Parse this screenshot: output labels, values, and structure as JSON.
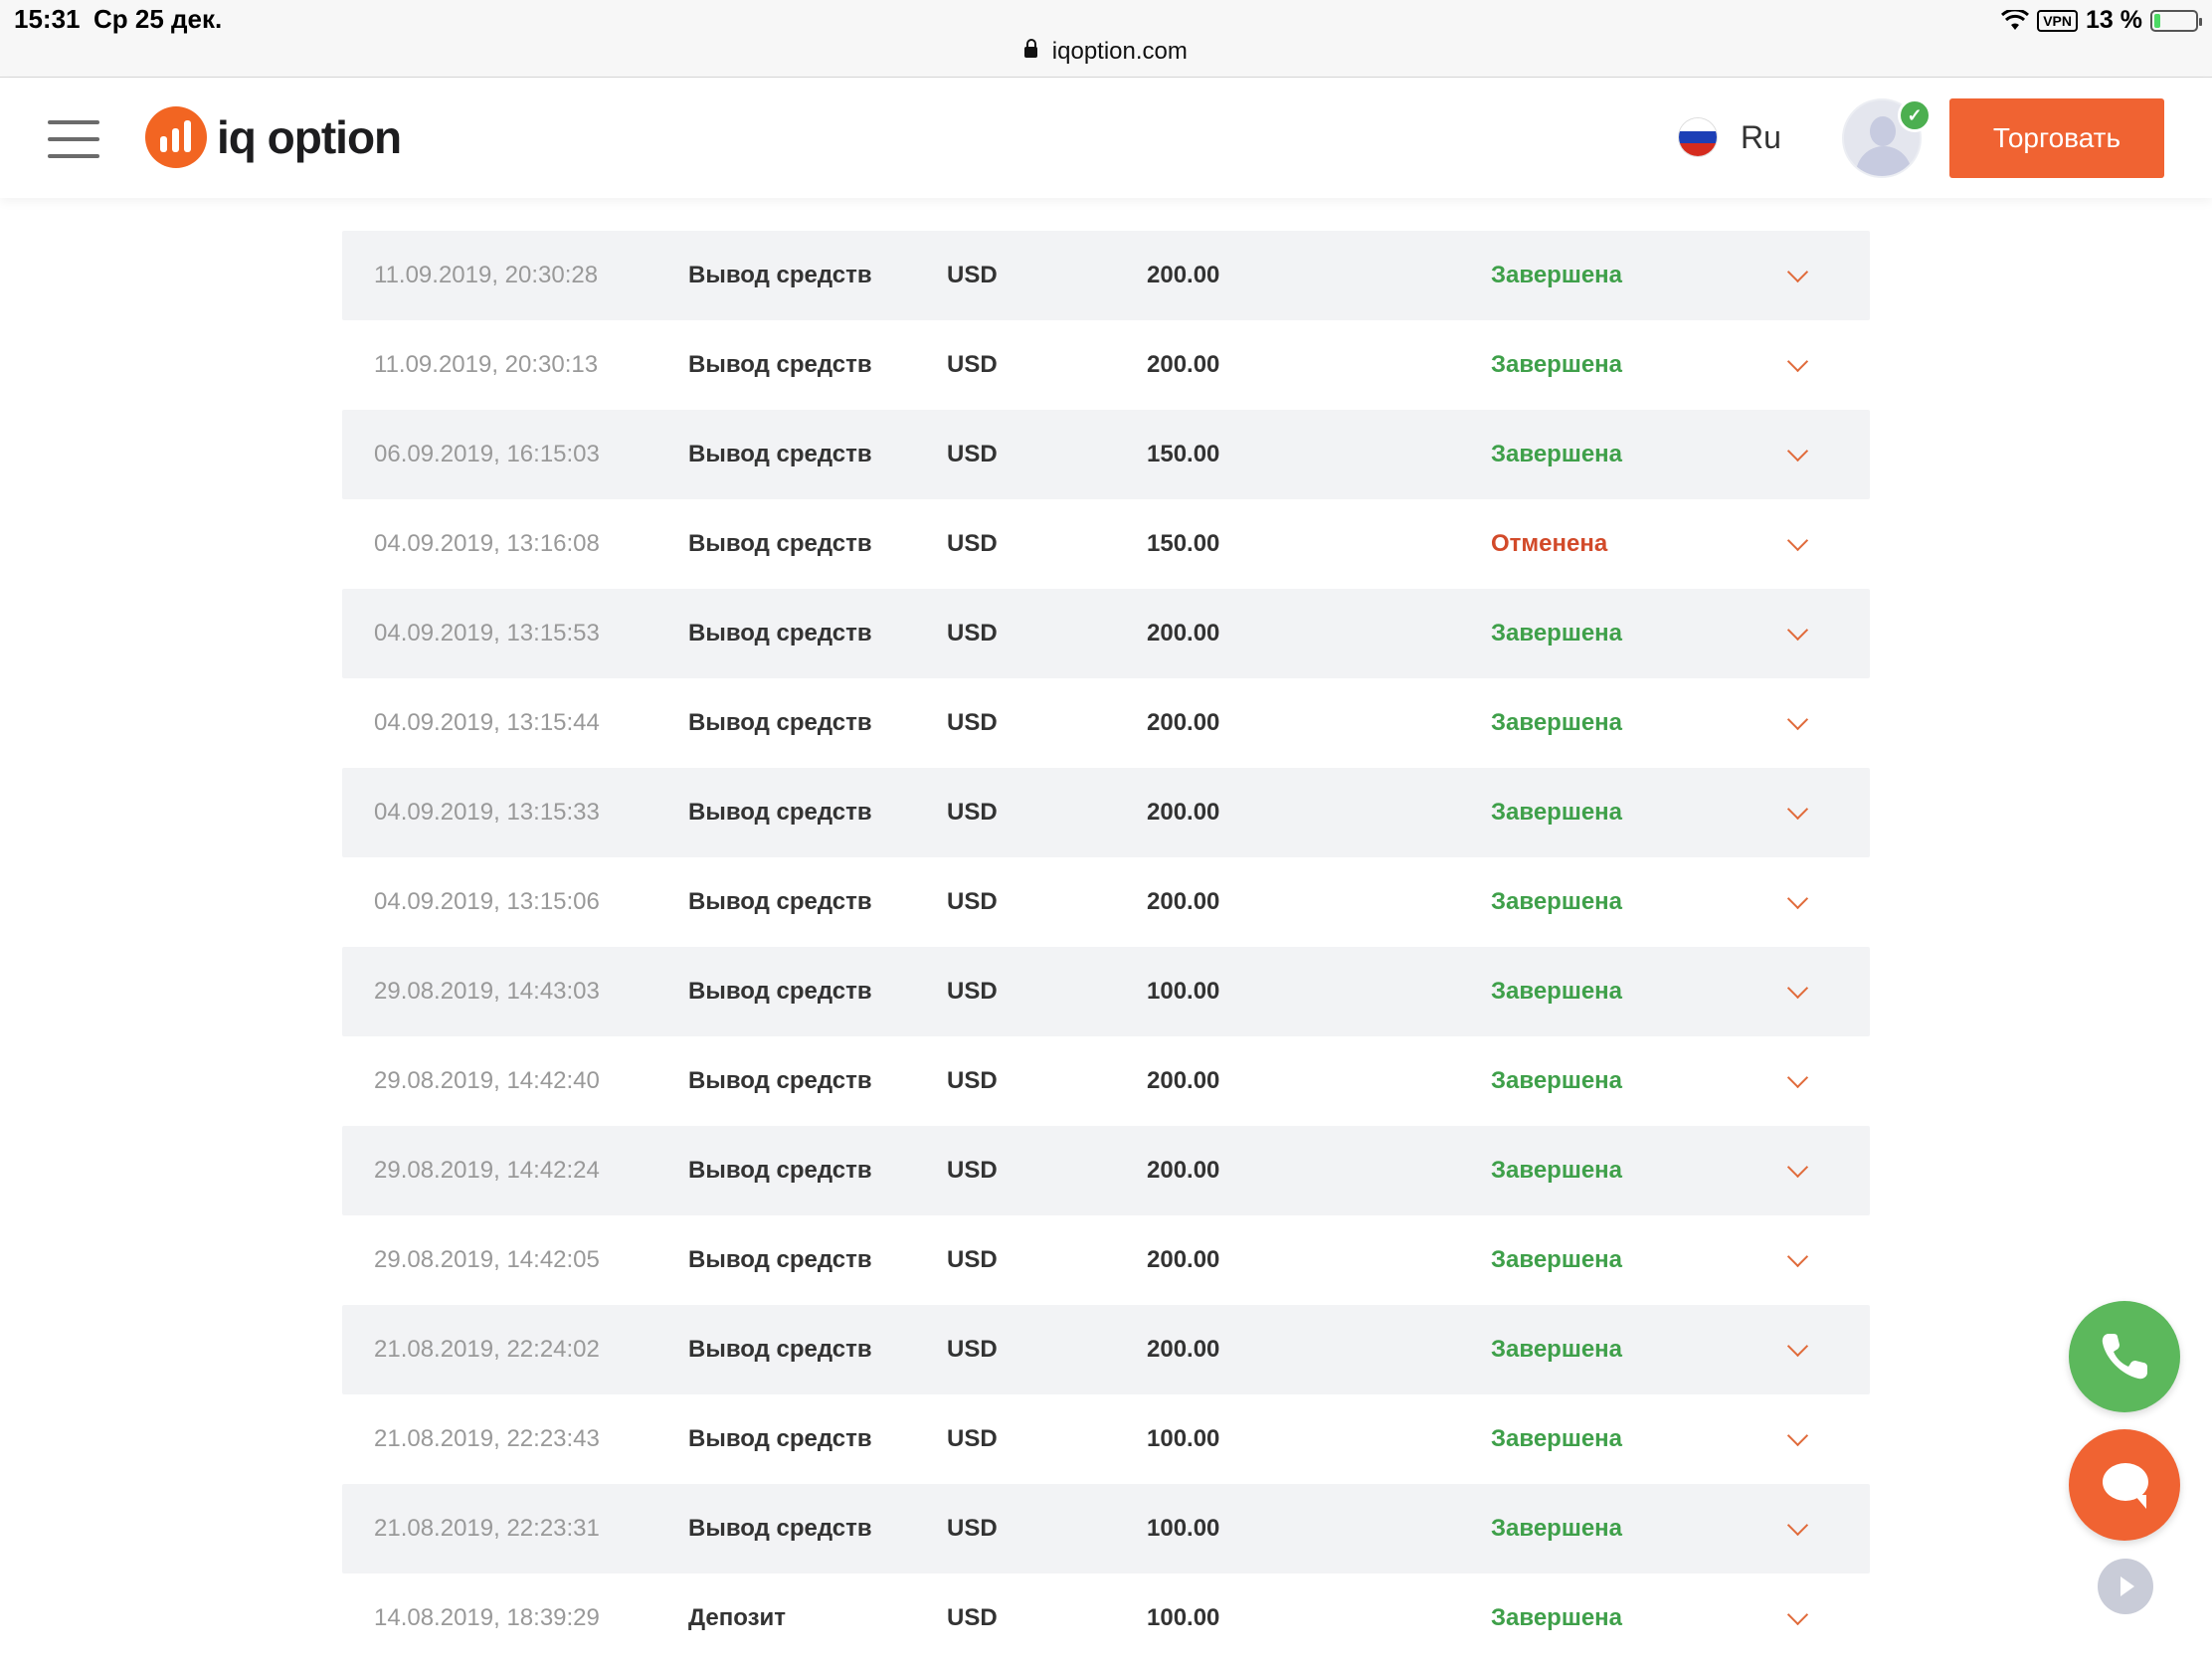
{
  "status_bar": {
    "time": "15:31",
    "date": "Ср 25 дек.",
    "vpn": "VPN",
    "battery": "13 %"
  },
  "address_bar": {
    "url": "iqoption.com"
  },
  "header": {
    "logo_text": "iq option",
    "language": "Ru",
    "trade_button": "Торговать"
  },
  "transactions": [
    {
      "date": "11.09.2019, 20:30:28",
      "type": "Вывод средств",
      "currency": "USD",
      "amount": "200.00",
      "status": "Завершена"
    },
    {
      "date": "11.09.2019, 20:30:13",
      "type": "Вывод средств",
      "currency": "USD",
      "amount": "200.00",
      "status": "Завершена"
    },
    {
      "date": "06.09.2019, 16:15:03",
      "type": "Вывод средств",
      "currency": "USD",
      "amount": "150.00",
      "status": "Завершена"
    },
    {
      "date": "04.09.2019, 13:16:08",
      "type": "Вывод средств",
      "currency": "USD",
      "amount": "150.00",
      "status": "Отменена"
    },
    {
      "date": "04.09.2019, 13:15:53",
      "type": "Вывод средств",
      "currency": "USD",
      "amount": "200.00",
      "status": "Завершена"
    },
    {
      "date": "04.09.2019, 13:15:44",
      "type": "Вывод средств",
      "currency": "USD",
      "amount": "200.00",
      "status": "Завершена"
    },
    {
      "date": "04.09.2019, 13:15:33",
      "type": "Вывод средств",
      "currency": "USD",
      "amount": "200.00",
      "status": "Завершена"
    },
    {
      "date": "04.09.2019, 13:15:06",
      "type": "Вывод средств",
      "currency": "USD",
      "amount": "200.00",
      "status": "Завершена"
    },
    {
      "date": "29.08.2019, 14:43:03",
      "type": "Вывод средств",
      "currency": "USD",
      "amount": "100.00",
      "status": "Завершена"
    },
    {
      "date": "29.08.2019, 14:42:40",
      "type": "Вывод средств",
      "currency": "USD",
      "amount": "200.00",
      "status": "Завершена"
    },
    {
      "date": "29.08.2019, 14:42:24",
      "type": "Вывод средств",
      "currency": "USD",
      "amount": "200.00",
      "status": "Завершена"
    },
    {
      "date": "29.08.2019, 14:42:05",
      "type": "Вывод средств",
      "currency": "USD",
      "amount": "200.00",
      "status": "Завершена"
    },
    {
      "date": "21.08.2019, 22:24:02",
      "type": "Вывод средств",
      "currency": "USD",
      "amount": "200.00",
      "status": "Завершена"
    },
    {
      "date": "21.08.2019, 22:23:43",
      "type": "Вывод средств",
      "currency": "USD",
      "amount": "100.00",
      "status": "Завершена"
    },
    {
      "date": "21.08.2019, 22:23:31",
      "type": "Вывод средств",
      "currency": "USD",
      "amount": "100.00",
      "status": "Завершена"
    },
    {
      "date": "14.08.2019, 18:39:29",
      "type": "Депозит",
      "currency": "USD",
      "amount": "100.00",
      "status": "Завершена"
    }
  ],
  "colors": {
    "brand": "#f06332",
    "status_ok": "#3fa04a",
    "status_cancel": "#d24a2a",
    "phone_fab": "#5cb85c"
  },
  "icons": [
    "menu-icon",
    "logo-icon",
    "flag-ru-icon",
    "avatar-icon",
    "verified-check-icon",
    "chevron-down-icon",
    "phone-icon",
    "chat-icon",
    "play-icon",
    "lock-icon",
    "wifi-icon",
    "battery-icon"
  ]
}
